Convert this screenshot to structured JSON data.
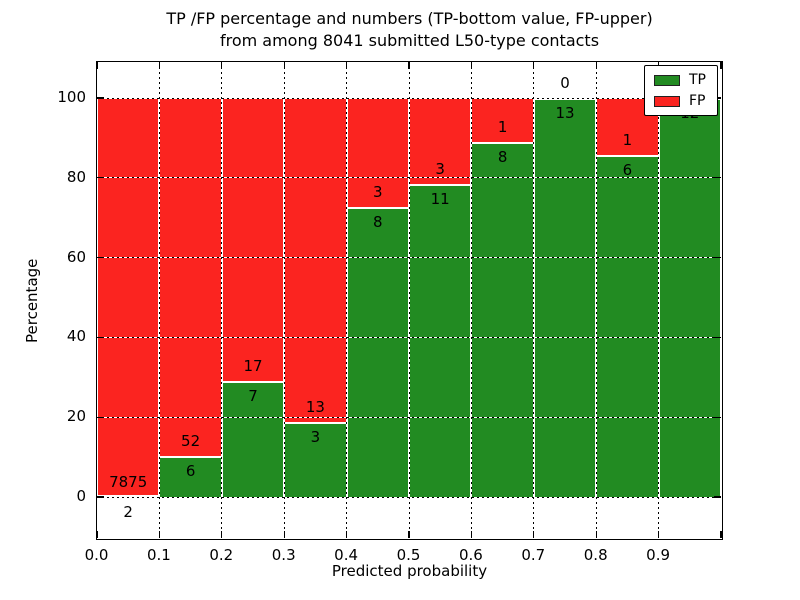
{
  "title": {
    "line1": "TP /FP percentage and numbers (TP-bottom value, FP-upper)",
    "line2": "from among 8041 submitted L50-type contacts"
  },
  "y_axis": {
    "label": "Percentage",
    "ticks": [
      0,
      20,
      40,
      60,
      80,
      100
    ]
  },
  "x_axis": {
    "label": "Predicted probability",
    "tick_labels": [
      "0.0",
      "0.1",
      "0.2",
      "0.3",
      "0.4",
      "0.5",
      "0.6",
      "0.7",
      "0.8",
      "0.9"
    ]
  },
  "legend": {
    "items": [
      {
        "label": "TP",
        "color": "#228b22"
      },
      {
        "label": "FP",
        "color": "#fb2420"
      }
    ]
  },
  "chart_data": {
    "type": "bar",
    "stacked": true,
    "unit": "percent_of_bin",
    "title": "TP /FP percentage and numbers (TP-bottom value, FP-upper) from among 8041 submitted L50-type contacts",
    "xlabel": "Predicted probability",
    "ylabel": "Percentage",
    "xlim": [
      0.0,
      1.0
    ],
    "ylim": [
      -10.5,
      109.5
    ],
    "grid": true,
    "grid_style": "dotted",
    "legend_position": "upper right",
    "total_contacts": 8041,
    "bin_width": 0.1,
    "bins": [
      "0.0-0.1",
      "0.1-0.2",
      "0.2-0.3",
      "0.3-0.4",
      "0.4-0.5",
      "0.5-0.6",
      "0.6-0.7",
      "0.7-0.8",
      "0.8-0.9",
      "0.9-1.0"
    ],
    "series": [
      {
        "name": "TP",
        "color": "#228b22",
        "counts": [
          2,
          6,
          7,
          3,
          8,
          11,
          8,
          13,
          6,
          12
        ],
        "percent": [
          0.03,
          10.34,
          29.17,
          18.75,
          72.73,
          78.57,
          88.89,
          100,
          85.71,
          100
        ]
      },
      {
        "name": "FP",
        "color": "#fb2420",
        "counts": [
          7875,
          52,
          17,
          13,
          3,
          3,
          1,
          0,
          1,
          0
        ],
        "percent": [
          99.97,
          89.66,
          70.83,
          81.25,
          27.27,
          21.43,
          11.11,
          0,
          14.29,
          0
        ]
      }
    ],
    "label_rule": "TP count below segment boundary, FP count above segment boundary"
  }
}
